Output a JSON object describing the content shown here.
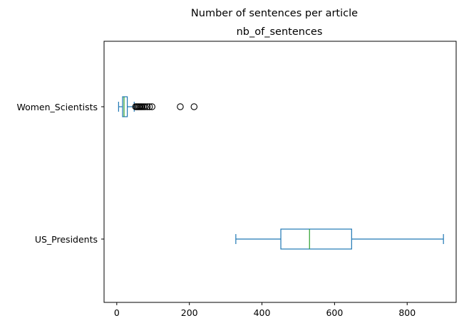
{
  "chart_data": {
    "type": "boxplot",
    "orientation": "horizontal",
    "suptitle": "Number of sentences per article",
    "title": "nb_of_sentences",
    "xlim": [
      -35,
      935
    ],
    "xticks": [
      0,
      200,
      400,
      600,
      800
    ],
    "tick_labels": [
      "0",
      "200",
      "400",
      "600",
      "800"
    ],
    "grid": false,
    "categories": [
      "Women_Scientists",
      "US_Presidents"
    ],
    "boxes": [
      {
        "label": "Women_Scientists",
        "whisker_low": 5,
        "q1": 16,
        "median": 20,
        "q3": 29,
        "whisker_high": 48,
        "outliers": [
          52,
          55,
          58,
          61,
          64,
          67,
          70,
          74,
          78,
          84,
          90,
          97,
          175,
          213
        ]
      },
      {
        "label": "US_Presidents",
        "whisker_low": 328,
        "q1": 452,
        "median": 531,
        "q3": 647,
        "whisker_high": 900,
        "outliers": []
      }
    ],
    "colors": {
      "box": "#1f77b4",
      "median": "#2ca02c",
      "outlier": "#000000",
      "axes": "#000000"
    }
  }
}
